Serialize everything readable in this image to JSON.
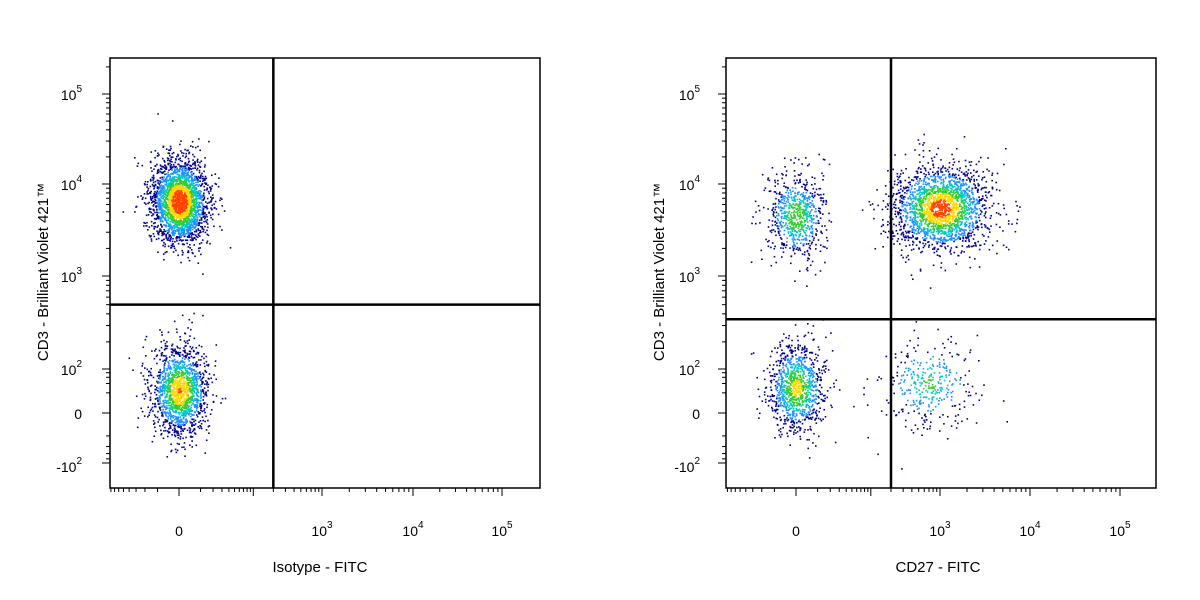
{
  "chart_data": [
    {
      "type": "scatter",
      "style": "density-pseudocolor",
      "xlabel": "Isotype - FITC",
      "ylabel": "CD3 - Brilliant Violet 421™",
      "xscale": "biexponential",
      "yscale": "biexponential",
      "x_ticks": [
        {
          "base": "0",
          "exp": ""
        },
        {
          "base": "10",
          "exp": "3"
        },
        {
          "base": "10",
          "exp": "4"
        },
        {
          "base": "10",
          "exp": "5"
        }
      ],
      "y_ticks": [
        {
          "base": "10",
          "exp": "5"
        },
        {
          "base": "10",
          "exp": "4"
        },
        {
          "base": "10",
          "exp": "3"
        },
        {
          "base": "10",
          "exp": "2"
        },
        {
          "base": "0",
          "exp": ""
        },
        {
          "base": "-10",
          "exp": "2"
        }
      ],
      "quadrant_gate": {
        "x": 200,
        "y": 500
      },
      "populations": [
        {
          "x": 0,
          "y": 6500,
          "share": 0.62
        },
        {
          "x": 0,
          "y": 25,
          "share": 0.38
        }
      ]
    },
    {
      "type": "scatter",
      "style": "density-pseudocolor",
      "xlabel": "CD27 - FITC",
      "ylabel": "CD3 - Brilliant Violet 421™",
      "xscale": "biexponential",
      "yscale": "biexponential",
      "x_ticks": [
        {
          "base": "0",
          "exp": ""
        },
        {
          "base": "10",
          "exp": "3"
        },
        {
          "base": "10",
          "exp": "4"
        },
        {
          "base": "10",
          "exp": "5"
        }
      ],
      "y_ticks": [
        {
          "base": "10",
          "exp": "5"
        },
        {
          "base": "10",
          "exp": "4"
        },
        {
          "base": "10",
          "exp": "3"
        },
        {
          "base": "10",
          "exp": "2"
        },
        {
          "base": "0",
          "exp": ""
        },
        {
          "base": "-10",
          "exp": "2"
        }
      ],
      "quadrant_gate": {
        "x": 200,
        "y": 350
      },
      "populations": [
        {
          "x": 0,
          "y": 4500,
          "share": 0.17
        },
        {
          "x": 1000,
          "y": 5500,
          "share": 0.5
        },
        {
          "x": 0,
          "y": 30,
          "share": 0.25
        },
        {
          "x": 700,
          "y": 40,
          "share": 0.08
        }
      ]
    }
  ],
  "colors": {
    "low": "#00008b",
    "mid_low": "#1e90ff",
    "mid": "#00c8c8",
    "mid_high": "#32cd32",
    "high": "#ffd700",
    "peak": "#ff4500"
  }
}
